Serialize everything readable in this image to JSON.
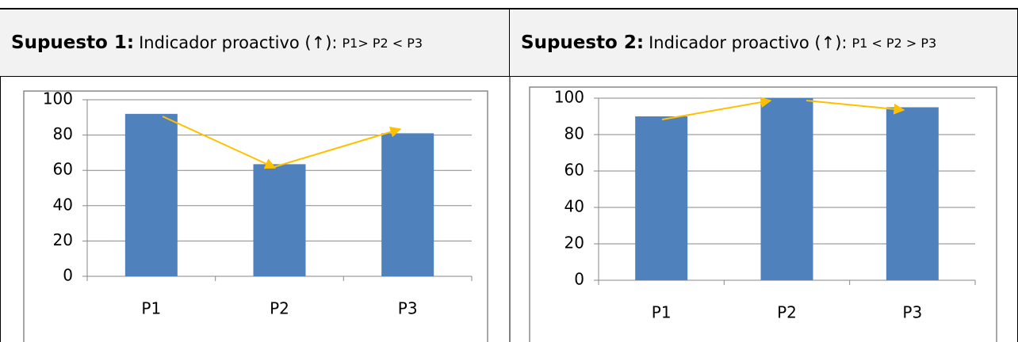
{
  "table": {
    "headers": [
      {
        "label": "Supuesto 1:",
        "text": "Indicador proactivo (↑):",
        "condition": "P1> P2 < P3"
      },
      {
        "label": "Supuesto 2:",
        "text": "Indicador proactivo (↑):",
        "condition": "P1 < P2 > P3"
      }
    ]
  },
  "chart_data": [
    {
      "type": "bar",
      "categories": [
        "P1",
        "P2",
        "P3"
      ],
      "values": [
        92,
        63.5,
        81
      ],
      "color": "#4f81bd",
      "ylim": [
        0,
        100
      ],
      "yticks": [
        0,
        20,
        40,
        60,
        80,
        100
      ],
      "grid": true
    },
    {
      "type": "bar",
      "categories": [
        "P1",
        "P2",
        "P3"
      ],
      "values": [
        90,
        100,
        95
      ],
      "color": "#4f81bd",
      "ylim": [
        0,
        100
      ],
      "yticks": [
        0,
        20,
        40,
        60,
        80,
        100
      ],
      "grid": true
    }
  ]
}
